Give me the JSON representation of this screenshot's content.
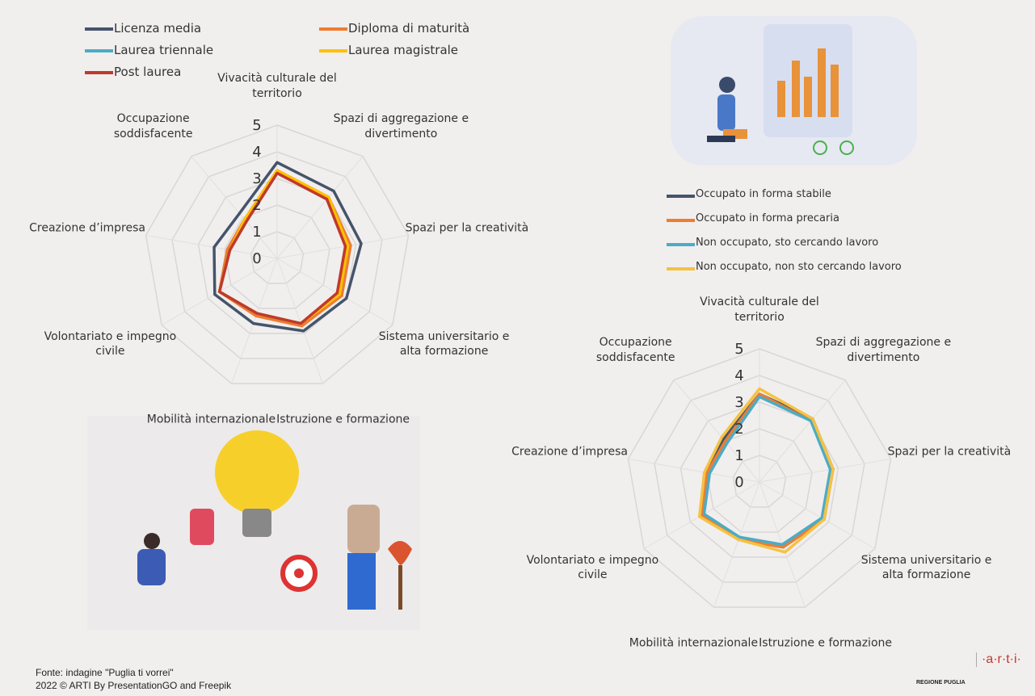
{
  "chart_data": [
    {
      "type": "radar",
      "categories": [
        "Vivacità culturale del territorio",
        "Spazi di aggregazione e divertimento",
        "Spazi per la creatività",
        "Sistema universitario e alta formazione",
        "Istruzione e formazione",
        "Mobilità internazionale",
        "Volontariato e impegno civile",
        "Creazione d’impresa",
        "Occupazione soddisfacente"
      ],
      "ylim": [
        0,
        5
      ],
      "yticks": [
        0,
        1,
        2,
        3,
        4,
        5
      ],
      "grid": true,
      "series": [
        {
          "name": "Licenza media",
          "color": "#44546a",
          "values": [
            3.6,
            3.3,
            3.2,
            3.0,
            2.9,
            2.6,
            2.7,
            2.4,
            2.2
          ]
        },
        {
          "name": "Diploma di maturità",
          "color": "#ed7d31",
          "values": [
            3.3,
            3.0,
            2.8,
            2.8,
            2.7,
            2.3,
            2.5,
            1.9,
            1.9
          ]
        },
        {
          "name": "Laurea triennale",
          "color": "#4bacc6",
          "values": [
            3.2,
            3.0,
            2.7,
            2.7,
            2.6,
            2.2,
            2.5,
            1.8,
            1.8
          ]
        },
        {
          "name": "Laurea magistrale",
          "color": "#ffc000",
          "values": [
            3.3,
            3.0,
            2.7,
            2.7,
            2.6,
            2.2,
            2.5,
            1.8,
            1.9
          ]
        },
        {
          "name": "Post laurea",
          "color": "#c0392b",
          "values": [
            3.2,
            2.9,
            2.6,
            2.6,
            2.6,
            2.2,
            2.5,
            1.8,
            1.8
          ]
        }
      ]
    },
    {
      "type": "radar",
      "categories": [
        "Vivacità culturale del territorio",
        "Spazi di aggregazione e divertimento",
        "Spazi per la creatività",
        "Sistema universitario e alta formazione",
        "Istruzione e formazione",
        "Mobilità internazionale",
        "Volontariato e impegno civile",
        "Creazione d’impresa",
        "Occupazione soddisfacente"
      ],
      "ylim": [
        0,
        5
      ],
      "yticks": [
        0,
        1,
        2,
        3,
        4,
        5
      ],
      "grid": true,
      "series": [
        {
          "name": "Occupato in forma stabile",
          "color": "#44546a",
          "values": [
            3.3,
            3.1,
            2.8,
            2.8,
            2.6,
            2.3,
            2.5,
            2.0,
            2.1
          ]
        },
        {
          "name": "Occupato in forma precaria",
          "color": "#ed7d31",
          "values": [
            3.3,
            3.0,
            2.8,
            2.8,
            2.6,
            2.3,
            2.5,
            2.0,
            2.0
          ]
        },
        {
          "name": "Non occupato, sto cercando lavoro",
          "color": "#4bacc6",
          "values": [
            3.2,
            3.0,
            2.7,
            2.7,
            2.5,
            2.2,
            2.4,
            1.9,
            1.9
          ]
        },
        {
          "name": "Non occupato, non sto cercando lavoro",
          "color": "#f5c242",
          "values": [
            3.5,
            3.1,
            2.8,
            2.8,
            2.8,
            2.3,
            2.6,
            2.1,
            2.2
          ]
        }
      ]
    }
  ],
  "footer": {
    "source": "Fonte: indagine \"Puglia ti vorrei\"",
    "credits": "2022 © ARTI By PresentationGO and Freepik",
    "logo1": "REGIONE PUGLIA",
    "logo2": "·a·r·t·i·"
  }
}
